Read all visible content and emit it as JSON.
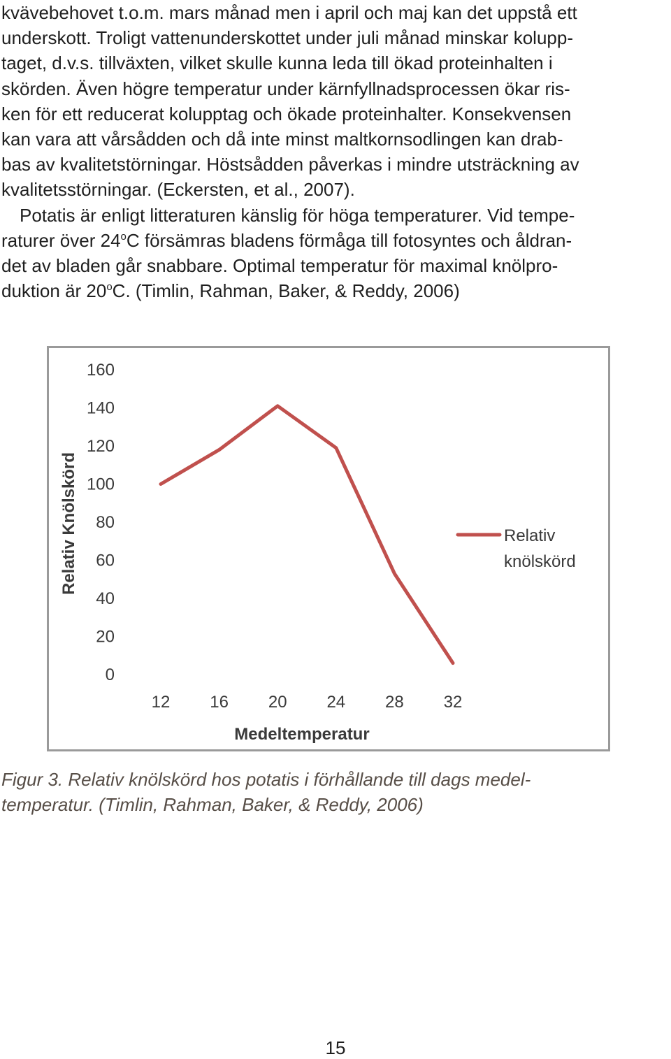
{
  "body_paragraphs": [
    {
      "lines": [
        "kvävebehovet t.o.m. mars månad men i april och maj kan det uppstå ett",
        "underskott. Troligt vattenunderskottet under juli månad minskar kolupp-",
        "taget, d.v.s. tillväxten, vilket skulle kunna leda till ökad proteinhalten i",
        "skörden. Även högre temperatur under kärnfyllnadsprocessen ökar ris-",
        "ken för ett reducerat kolupptag och ökade proteinhalter. Konsekvensen",
        "kan vara att vårsådden och då inte minst maltkornsodlingen kan drab-",
        "bas av kvalitetstörningar. Höstsådden påverkas i mindre utsträckning av",
        "kvalitetsstörningar. (Eckersten, et al., 2007)."
      ]
    },
    {
      "lines": [
        {
          "text": "Potatis är enligt litteraturen känslig för höga temperaturer. Vid tempe-"
        },
        {
          "pre": "raturer över 24",
          "sup": "o",
          "post": "C försämras bladens förmåga till fotosyntes och åldran-"
        },
        {
          "text": "det av bladen går snabbare. Optimal temperatur för maximal knölpro-"
        },
        {
          "pre": "duktion är 20",
          "sup": "o",
          "post": "C. (Timlin, Rahman, Baker, & Reddy, 2006)"
        }
      ]
    }
  ],
  "chart_data": {
    "type": "line",
    "x": [
      12,
      16,
      20,
      24,
      28,
      32
    ],
    "series": [
      {
        "name": "Relativ knölskörd",
        "values": [
          100,
          118,
          141,
          119,
          53,
          6
        ],
        "color": "#c0504d"
      }
    ],
    "xlabel": "Medeltemperatur",
    "ylabel": "Relativ Knölskörd",
    "ylim": [
      0,
      160
    ],
    "yticks": [
      0,
      20,
      40,
      60,
      80,
      100,
      120,
      140,
      160
    ],
    "xticks": [
      12,
      16,
      20,
      24,
      28,
      32
    ],
    "legend_lines": [
      "Relativ",
      "knölskörd"
    ],
    "legend_position": "right",
    "grid": false
  },
  "caption": {
    "lines": [
      "Figur 3. Relativ knölskörd hos potatis i förhållande till dags medel-",
      "temperatur. (Timlin, Rahman, Baker, & Reddy, 2006)"
    ],
    "color": "#574e47"
  },
  "page_number": "15"
}
